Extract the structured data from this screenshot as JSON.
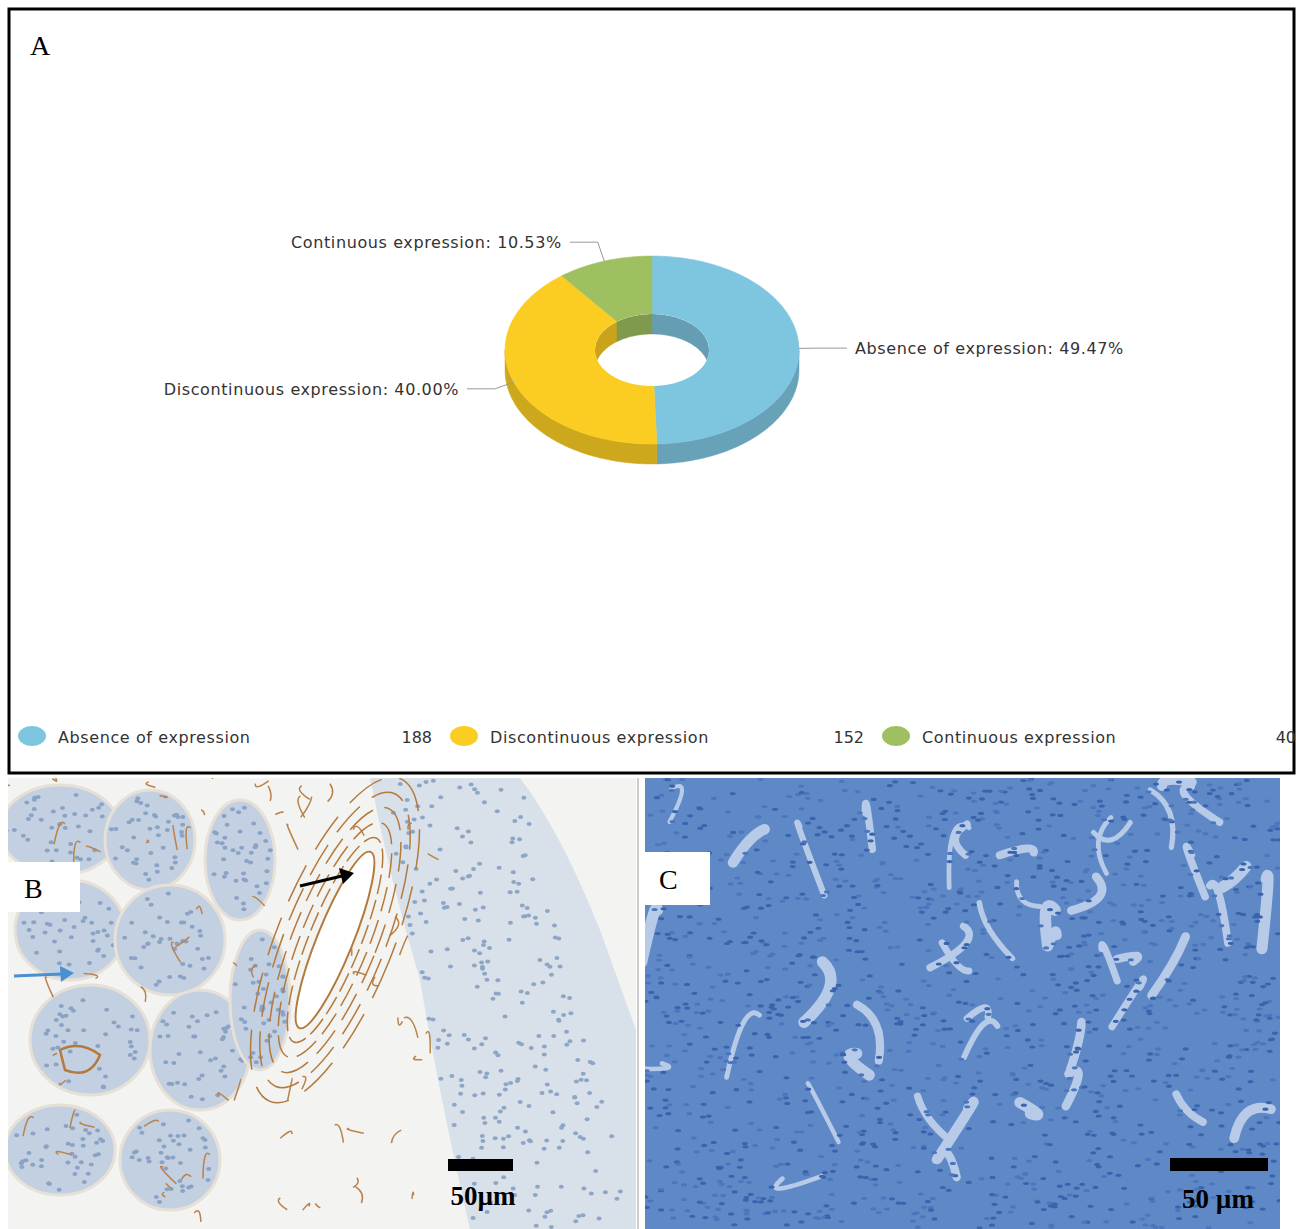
{
  "chart_data": {
    "type": "donut",
    "categories": [
      "Absence of expression",
      "Discontinuous expression",
      "Continuous expression"
    ],
    "values": [
      49.47,
      40.0,
      10.53
    ],
    "value_labels": [
      "Absence of expression: 49.47%",
      "Discontinuous expression: 40.00%",
      "Continuous expression: 10.53%"
    ],
    "counts": [
      188,
      152,
      40
    ],
    "colors": [
      "#7ec6e0",
      "#fbcd22",
      "#9fc060"
    ],
    "data_labels": true,
    "legend": "bottom"
  },
  "figure": {
    "panel_labels": [
      "A",
      "B",
      "C"
    ],
    "scale_bars": [
      "50µm",
      "50 µm"
    ]
  }
}
